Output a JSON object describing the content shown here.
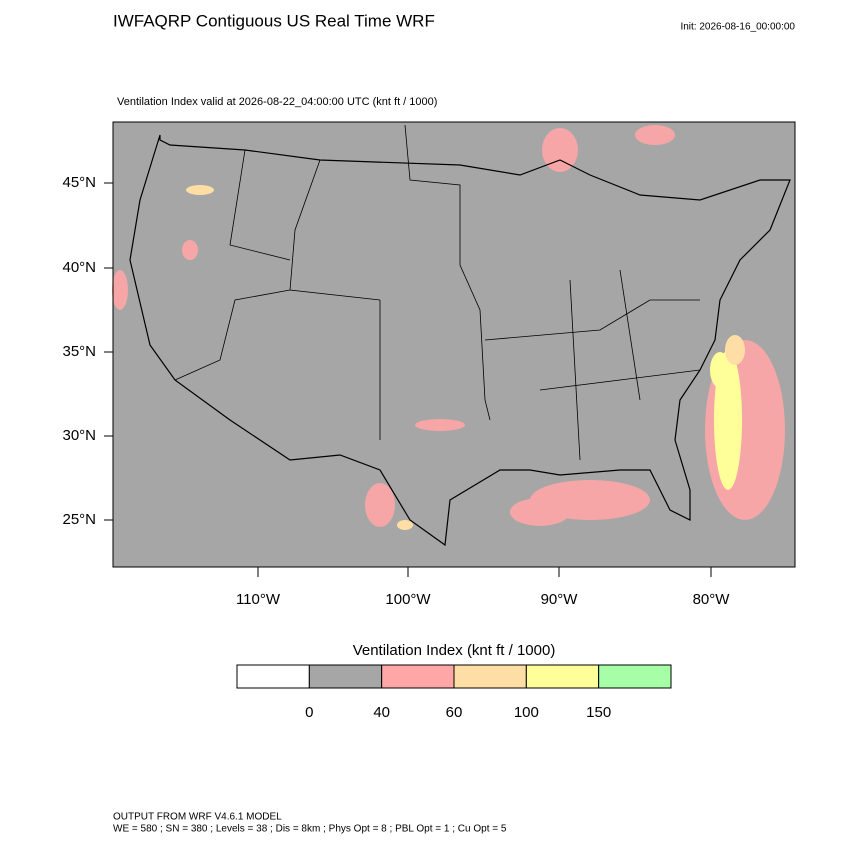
{
  "header": {
    "title": "IWFAQRP Contiguous US Real Time WRF",
    "init": "Init: 2026-08-16_00:00:00",
    "subtitle": "Ventilation Index valid at 2026-08-22_04:00:00 UTC   (knt ft / 1000)"
  },
  "map": {
    "lat_labels": [
      "45°N",
      "40°N",
      "35°N",
      "30°N",
      "25°N"
    ],
    "lon_labels": [
      "110°W",
      "100°W",
      "90°W",
      "80°W"
    ],
    "background": "#a6a6a6"
  },
  "legend": {
    "title": "Ventilation Index  (knt ft / 1000)",
    "colors": [
      "#ffffff",
      "#a6a6a6",
      "#ffa6a6",
      "#ffdea6",
      "#ffff99",
      "#a6ffa6"
    ],
    "labels": [
      "0",
      "40",
      "60",
      "100",
      "150"
    ]
  },
  "footer": {
    "lines": [
      "OUTPUT FROM WRF V4.6.1 MODEL",
      "WE = 580 ; SN = 380 ; Levels = 38 ; Dis = 8km ; Phys Opt = 8 ; PBL Opt = 1 ; Cu Opt = 5"
    ]
  }
}
